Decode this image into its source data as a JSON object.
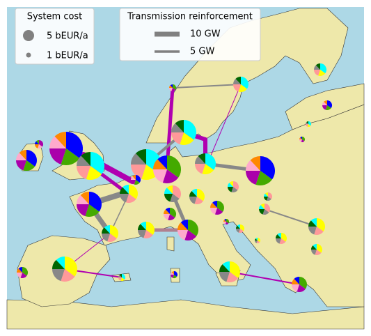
{
  "legends": {
    "system_cost": {
      "title": "System cost",
      "items": [
        "5 bEUR/a",
        "1 bEUR/a"
      ]
    },
    "transmission": {
      "title": "Transmission reinforcement",
      "items": [
        "10 GW",
        "5 GW"
      ]
    }
  }
}
